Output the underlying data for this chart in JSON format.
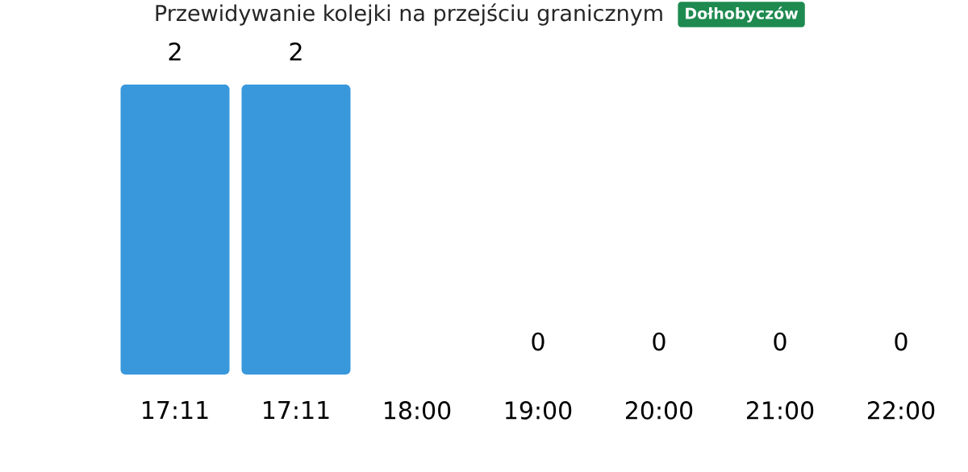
{
  "chart_data": {
    "type": "bar",
    "title": "Przewidywanie kolejki na przejściu granicznym",
    "subtitle": "Dołhobyczów",
    "categories": [
      "17:11",
      "17:11",
      "18:00",
      "19:00",
      "20:00",
      "21:00",
      "22:00"
    ],
    "values": [
      2,
      2,
      null,
      0,
      0,
      0,
      0
    ],
    "color": "#3898db",
    "data_labels": true
  }
}
